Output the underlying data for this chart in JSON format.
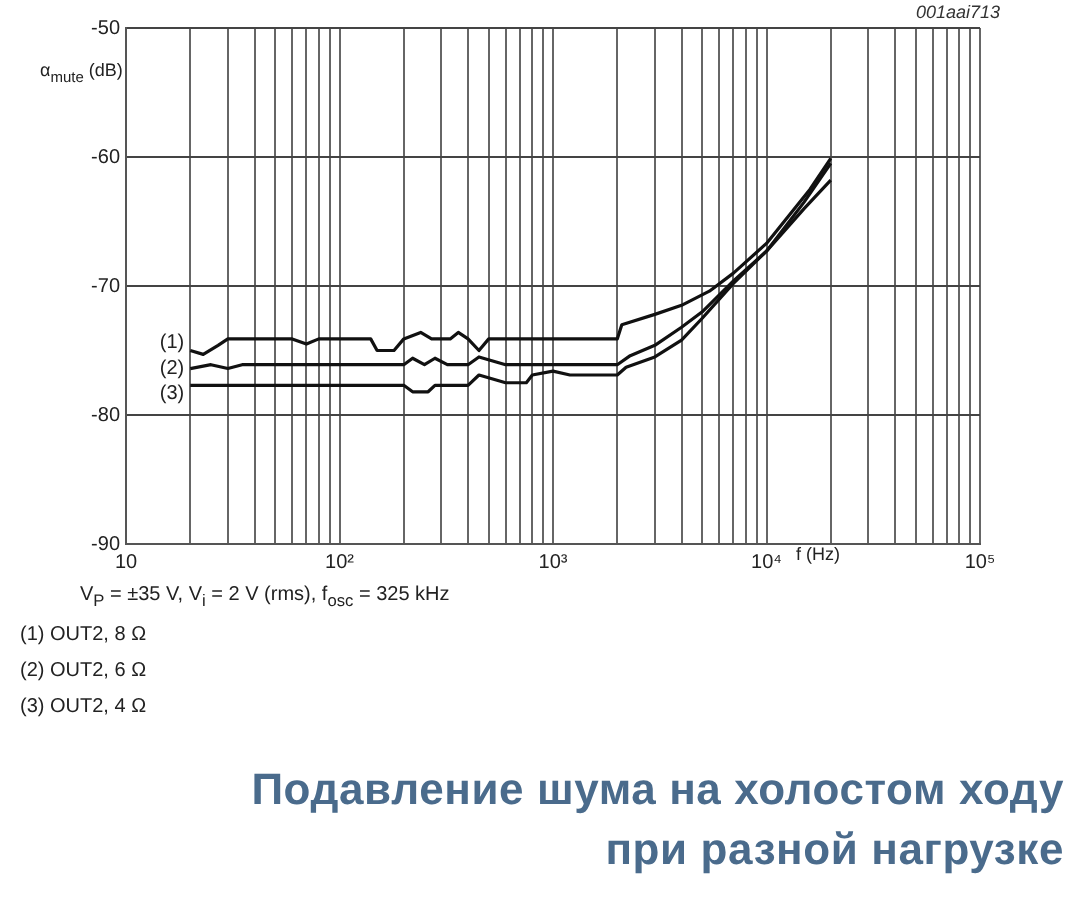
{
  "chart_data": {
    "type": "line",
    "title": "Подавление шума на холостом ходу\nпри разной нагрузке",
    "xlabel": "f (Hz)",
    "ylabel": "α$_{mute}$ (dB)",
    "log": "x",
    "grid": true,
    "legend": false,
    "marker": "none",
    "line_style": "solid",
    "xlim": [
      10,
      100000
    ],
    "ylim": [
      -90,
      -50
    ],
    "xticks": [
      10,
      {
        "value": 20,
        "label": null
      },
      {
        "value": 30,
        "label": null
      },
      {
        "value": 40,
        "label": null
      },
      {
        "value": 50,
        "label": null
      },
      {
        "value": 60,
        "label": null
      },
      {
        "value": 70,
        "label": null
      },
      {
        "value": 80,
        "label": null
      },
      {
        "value": 90,
        "label": null
      },
      {
        "value": 100,
        "label": "10²"
      },
      {
        "value": 200,
        "label": null
      },
      {
        "value": 300,
        "label": null
      },
      {
        "value": 400,
        "label": null
      },
      {
        "value": 500,
        "label": null
      },
      {
        "value": 600,
        "label": null
      },
      {
        "value": 700,
        "label": null
      },
      {
        "value": 800,
        "label": null
      },
      {
        "value": 900,
        "label": null
      },
      {
        "value": 1000,
        "label": "10³"
      },
      {
        "value": 2000,
        "label": null
      },
      {
        "value": 3000,
        "label": null
      },
      {
        "value": 4000,
        "label": null
      },
      {
        "value": 5000,
        "label": null
      },
      {
        "value": 6000,
        "label": null
      },
      {
        "value": 7000,
        "label": null
      },
      {
        "value": 8000,
        "label": null
      },
      {
        "value": 9000,
        "label": null
      },
      {
        "value": 10000,
        "label": "10⁴"
      },
      {
        "value": 20000,
        "label": null
      },
      {
        "value": 30000,
        "label": null
      },
      {
        "value": 40000,
        "label": null
      },
      {
        "value": 50000,
        "label": null
      },
      {
        "value": 60000,
        "label": null
      },
      {
        "value": 70000,
        "label": null
      },
      {
        "value": 80000,
        "label": null
      },
      {
        "value": 90000,
        "label": null
      },
      {
        "value": 100000,
        "label": "10⁵"
      }
    ],
    "yticks": [
      -90,
      -80,
      -70,
      -60,
      -50
    ],
    "series": [
      {
        "name": "(1)",
        "color": "#111111",
        "x": [
          20,
          23,
          27,
          30,
          60,
          70,
          80,
          140,
          150,
          180,
          200,
          240,
          270,
          330,
          360,
          400,
          450,
          500,
          1100,
          2000,
          2100,
          3000,
          4000,
          5400,
          7000,
          10000,
          16000,
          20000
        ],
        "values": [
          -75,
          -75.3,
          -74.6,
          -74.1,
          -74.1,
          -74.5,
          -74.1,
          -74.1,
          -75,
          -75,
          -74.1,
          -73.6,
          -74.1,
          -74.1,
          -73.6,
          -74.1,
          -75,
          -74.1,
          -74.1,
          -74.1,
          -73,
          -72.2,
          -71.5,
          -70.4,
          -69,
          -66.7,
          -62.5,
          -60.1
        ]
      },
      {
        "name": "(2)",
        "color": "#111111",
        "x": [
          20,
          25,
          30,
          35,
          200,
          220,
          250,
          280,
          320,
          400,
          450,
          600,
          2000,
          2300,
          3000,
          4000,
          5000,
          7000,
          10000,
          15000,
          20000
        ],
        "values": [
          -76.4,
          -76.1,
          -76.4,
          -76.1,
          -76.1,
          -75.6,
          -76.1,
          -75.6,
          -76.1,
          -76.1,
          -75.5,
          -76.1,
          -76.1,
          -75.4,
          -74.6,
          -73.2,
          -72,
          -69.6,
          -67.3,
          -63.5,
          -60.5
        ]
      },
      {
        "name": "(3)",
        "color": "#111111",
        "x": [
          20,
          200,
          220,
          260,
          280,
          400,
          450,
          600,
          750,
          800,
          1000,
          1200,
          2000,
          2200,
          3000,
          4000,
          5000,
          7000,
          10000,
          15000,
          20000
        ],
        "values": [
          -77.7,
          -77.7,
          -78.2,
          -78.2,
          -77.7,
          -77.7,
          -76.9,
          -77.5,
          -77.5,
          -76.9,
          -76.6,
          -76.9,
          -76.9,
          -76.3,
          -75.5,
          -74.2,
          -72.5,
          -69.8,
          -67.3,
          -64,
          -61.8
        ]
      }
    ],
    "annotations": [
      "001aai713",
      "V$_{P}$ = ±35 V, V$_{i}$ = 2 V (rms), f$_{osc}$ = 325 kHz",
      "(1)  OUT2, 8 Ω",
      "(2)  OUT2, 6 Ω",
      "(3)  OUT2, 4 Ω"
    ]
  }
}
